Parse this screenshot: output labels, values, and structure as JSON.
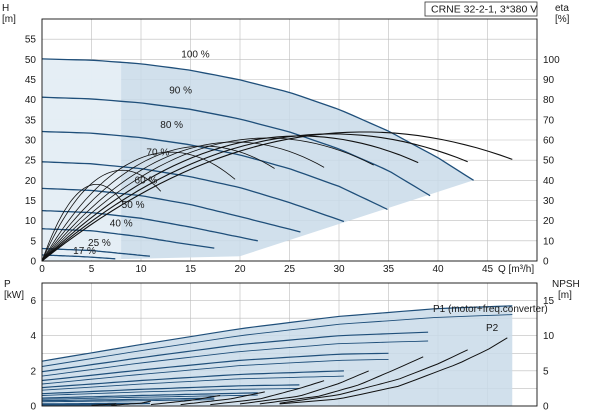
{
  "chart_data": [
    {
      "type": "line",
      "title": "CRNE 32-2-1, 3*380 V",
      "x_axis": {
        "label": "Q [m³/h]",
        "ticks": [
          0,
          5,
          10,
          15,
          20,
          25,
          30,
          35,
          40,
          45
        ],
        "range": [
          0,
          50
        ]
      },
      "y_left": {
        "label": "H",
        "unit": "[m]",
        "ticks": [
          0,
          5,
          10,
          15,
          20,
          25,
          30,
          35,
          40,
          45,
          50,
          55
        ],
        "range": [
          0,
          60
        ]
      },
      "y_right": {
        "label": "eta",
        "unit": "[%]",
        "ticks": [
          0,
          10,
          20,
          30,
          40,
          50,
          60,
          70,
          80,
          90,
          100
        ],
        "range": [
          0,
          120
        ]
      },
      "grid": true,
      "speed_labels": [
        {
          "text": "100 %",
          "q": 15.5,
          "h": 50.5
        },
        {
          "text": "90 %",
          "q": 14.0,
          "h": 41.5
        },
        {
          "text": "80 %",
          "q": 13.1,
          "h": 33.0
        },
        {
          "text": "70 %",
          "q": 11.7,
          "h": 26.2
        },
        {
          "text": "60 %",
          "q": 10.5,
          "h": 19.2
        },
        {
          "text": "50 %",
          "q": 9.2,
          "h": 13.2
        },
        {
          "text": "40 %",
          "q": 8.0,
          "h": 8.5
        },
        {
          "text": "25 %",
          "q": 5.8,
          "h": 3.7
        },
        {
          "text": "17 %",
          "q": 4.3,
          "h": 1.7
        }
      ],
      "series": [
        {
          "values": [
            [
              0,
              50.1
            ],
            [
              5,
              49.8
            ],
            [
              10,
              48.9
            ],
            [
              15,
              47.3
            ],
            [
              20,
              44.9
            ],
            [
              25,
              41.8
            ],
            [
              30,
              37.6
            ],
            [
              35,
              32.2
            ],
            [
              40,
              25.6
            ],
            [
              43.6,
              20.0
            ]
          ]
        },
        {
          "values": [
            [
              0,
              40.6
            ],
            [
              5,
              40.2
            ],
            [
              10,
              39.2
            ],
            [
              15,
              37.6
            ],
            [
              20,
              35.2
            ],
            [
              25,
              32.0
            ],
            [
              30,
              27.8
            ],
            [
              35,
              22.4
            ],
            [
              39.2,
              16.2
            ]
          ]
        },
        {
          "values": [
            [
              0,
              32.1
            ],
            [
              5,
              31.7
            ],
            [
              10,
              30.6
            ],
            [
              15,
              28.8
            ],
            [
              20,
              26.3
            ],
            [
              25,
              22.9
            ],
            [
              30,
              18.5
            ],
            [
              34.9,
              12.8
            ]
          ]
        },
        {
          "values": [
            [
              0,
              24.6
            ],
            [
              5,
              24.1
            ],
            [
              10,
              22.9
            ],
            [
              15,
              20.9
            ],
            [
              20,
              18.2
            ],
            [
              25,
              14.5
            ],
            [
              30.5,
              9.8
            ]
          ]
        },
        {
          "values": [
            [
              0,
              18.0
            ],
            [
              5,
              17.5
            ],
            [
              10,
              16.2
            ],
            [
              15,
              14.0
            ],
            [
              20,
              11.0
            ],
            [
              26.1,
              7.2
            ]
          ]
        },
        {
          "values": [
            [
              0,
              12.5
            ],
            [
              5,
              12.0
            ],
            [
              10,
              10.6
            ],
            [
              15,
              8.4
            ],
            [
              21.8,
              5.0
            ]
          ]
        },
        {
          "values": [
            [
              0,
              8.0
            ],
            [
              5,
              7.5
            ],
            [
              10,
              6.0
            ],
            [
              14,
              4.4
            ],
            [
              17.4,
              3.2
            ]
          ]
        },
        {
          "values": [
            [
              0,
              3.1
            ],
            [
              5,
              2.6
            ],
            [
              10,
              1.4
            ],
            [
              10.9,
              1.2
            ]
          ]
        },
        {
          "values": [
            [
              0,
              1.5
            ],
            [
              4,
              1.1
            ],
            [
              7.4,
              0.55
            ]
          ]
        }
      ],
      "efficiency_curves": [
        {
          "peak_q": 32.5,
          "peak_eta": 64,
          "end_q": 47.5
        },
        {
          "peak_q": 29.3,
          "peak_eta": 63,
          "end_q": 43.0
        },
        {
          "peak_q": 26.0,
          "peak_eta": 62,
          "end_q": 38.0
        },
        {
          "peak_q": 22.8,
          "peak_eta": 61,
          "end_q": 33.5
        },
        {
          "peak_q": 19.5,
          "peak_eta": 59,
          "end_q": 28.5
        },
        {
          "peak_q": 16.3,
          "peak_eta": 57,
          "end_q": 23.5
        },
        {
          "peak_q": 13.0,
          "peak_eta": 54,
          "end_q": 19.5
        },
        {
          "peak_q": 8.1,
          "peak_eta": 45,
          "end_q": 12.0
        },
        {
          "peak_q": 5.5,
          "peak_eta": 38,
          "end_q": 8.2
        }
      ]
    },
    {
      "type": "line",
      "x_axis": {
        "ticks": [
          0,
          5,
          10,
          15,
          20,
          25,
          30,
          35,
          40,
          45
        ],
        "range": [
          0,
          50
        ]
      },
      "y_left": {
        "label": "P",
        "unit": "[kW]",
        "ticks": [
          0,
          2,
          4,
          6
        ],
        "range": [
          0,
          7
        ]
      },
      "y_right": {
        "label": "NPSH",
        "unit": "[m]",
        "ticks": [
          0,
          5,
          10,
          15
        ],
        "range": [
          0,
          17.5
        ]
      },
      "grid": true,
      "series_labels": [
        "P1 (motor+freq.converter)",
        "P2"
      ],
      "power_curves": [
        {
          "p1": [
            [
              0,
              2.55
            ],
            [
              10,
              3.5
            ],
            [
              20,
              4.4
            ],
            [
              30,
              5.1
            ],
            [
              40,
              5.55
            ],
            [
              47.5,
              5.7
            ]
          ],
          "p2": [
            [
              0,
              2.25
            ],
            [
              10,
              3.15
            ],
            [
              20,
              4.0
            ],
            [
              30,
              4.65
            ],
            [
              40,
              5.05
            ],
            [
              47.5,
              5.2
            ]
          ]
        },
        {
          "p1": [
            [
              0,
              1.95
            ],
            [
              10,
              2.75
            ],
            [
              20,
              3.5
            ],
            [
              30,
              4.0
            ],
            [
              39,
              4.2
            ]
          ],
          "p2": [
            [
              0,
              1.7
            ],
            [
              10,
              2.45
            ],
            [
              20,
              3.1
            ],
            [
              30,
              3.55
            ],
            [
              39,
              3.7
            ]
          ]
        },
        {
          "p1": [
            [
              0,
              1.45
            ],
            [
              10,
              2.05
            ],
            [
              20,
              2.6
            ],
            [
              30,
              2.95
            ],
            [
              35,
              3.0
            ]
          ],
          "p2": [
            [
              0,
              1.25
            ],
            [
              10,
              1.8
            ],
            [
              20,
              2.3
            ],
            [
              30,
              2.6
            ],
            [
              35,
              2.65
            ]
          ]
        },
        {
          "p1": [
            [
              0,
              1.05
            ],
            [
              10,
              1.45
            ],
            [
              20,
              1.8
            ],
            [
              30.5,
              2.0
            ]
          ],
          "p2": [
            [
              0,
              0.9
            ],
            [
              10,
              1.25
            ],
            [
              20,
              1.55
            ],
            [
              30.5,
              1.7
            ]
          ]
        },
        {
          "p1": [
            [
              0,
              0.7
            ],
            [
              10,
              0.95
            ],
            [
              20,
              1.15
            ],
            [
              26,
              1.2
            ]
          ],
          "p2": [
            [
              0,
              0.6
            ],
            [
              10,
              0.8
            ],
            [
              20,
              0.95
            ],
            [
              26,
              1.0
            ]
          ]
        },
        {
          "p1": [
            [
              0,
              0.45
            ],
            [
              10,
              0.6
            ],
            [
              21.8,
              0.75
            ]
          ],
          "p2": [
            [
              0,
              0.38
            ],
            [
              10,
              0.5
            ],
            [
              21.8,
              0.62
            ]
          ]
        },
        {
          "p1": [
            [
              0,
              0.3
            ],
            [
              10,
              0.38
            ],
            [
              17.4,
              0.45
            ]
          ],
          "p2": [
            [
              0,
              0.24
            ],
            [
              10,
              0.3
            ],
            [
              17.4,
              0.36
            ]
          ]
        },
        {
          "p1": [
            [
              0,
              0.12
            ],
            [
              10.9,
              0.16
            ]
          ],
          "p2": [
            [
              0,
              0.1
            ],
            [
              10.9,
              0.13
            ]
          ]
        },
        {
          "p1": [
            [
              0,
              0.06
            ],
            [
              7.4,
              0.08
            ]
          ],
          "p2": [
            [
              0,
              0.05
            ],
            [
              7.4,
              0.06
            ]
          ]
        }
      ],
      "npsh_curves": [
        [
          [
            24,
            0.3
          ],
          [
            30,
            1.0
          ],
          [
            36,
            2.8
          ],
          [
            42,
            6.0
          ],
          [
            45,
            8.0
          ],
          [
            47,
            9.7
          ]
        ],
        [
          [
            24,
            0.4
          ],
          [
            30,
            1.6
          ],
          [
            36,
            3.8
          ],
          [
            40,
            6.0
          ],
          [
            43,
            8.0
          ]
        ],
        [
          [
            22,
            0.3
          ],
          [
            28,
            1.4
          ],
          [
            32,
            3.0
          ],
          [
            36,
            5.4
          ],
          [
            38.5,
            7.0
          ]
        ],
        [
          [
            20,
            0.3
          ],
          [
            26,
            1.4
          ],
          [
            30,
            3.2
          ],
          [
            33,
            5.0
          ]
        ],
        [
          [
            17,
            0.2
          ],
          [
            22,
            1.0
          ],
          [
            26,
            2.5
          ],
          [
            28.5,
            3.6
          ]
        ],
        [
          [
            14,
            0.2
          ],
          [
            19,
            1.0
          ],
          [
            22.5,
            2.0
          ]
        ],
        [
          [
            11,
            0.2
          ],
          [
            15,
            0.8
          ],
          [
            18,
            1.5
          ]
        ],
        [
          [
            7,
            0.1
          ],
          [
            10,
            0.4
          ],
          [
            11,
            0.7
          ]
        ],
        [
          [
            5,
            0.1
          ],
          [
            7.5,
            0.3
          ]
        ]
      ]
    }
  ],
  "colors": {
    "grid": "#bdbdbd",
    "axis": "#111111",
    "pump_curve": "#1f4f7a",
    "efficiency": "#111111",
    "shade": "#c9dbe9",
    "bep_zone": "#e7eff6"
  }
}
